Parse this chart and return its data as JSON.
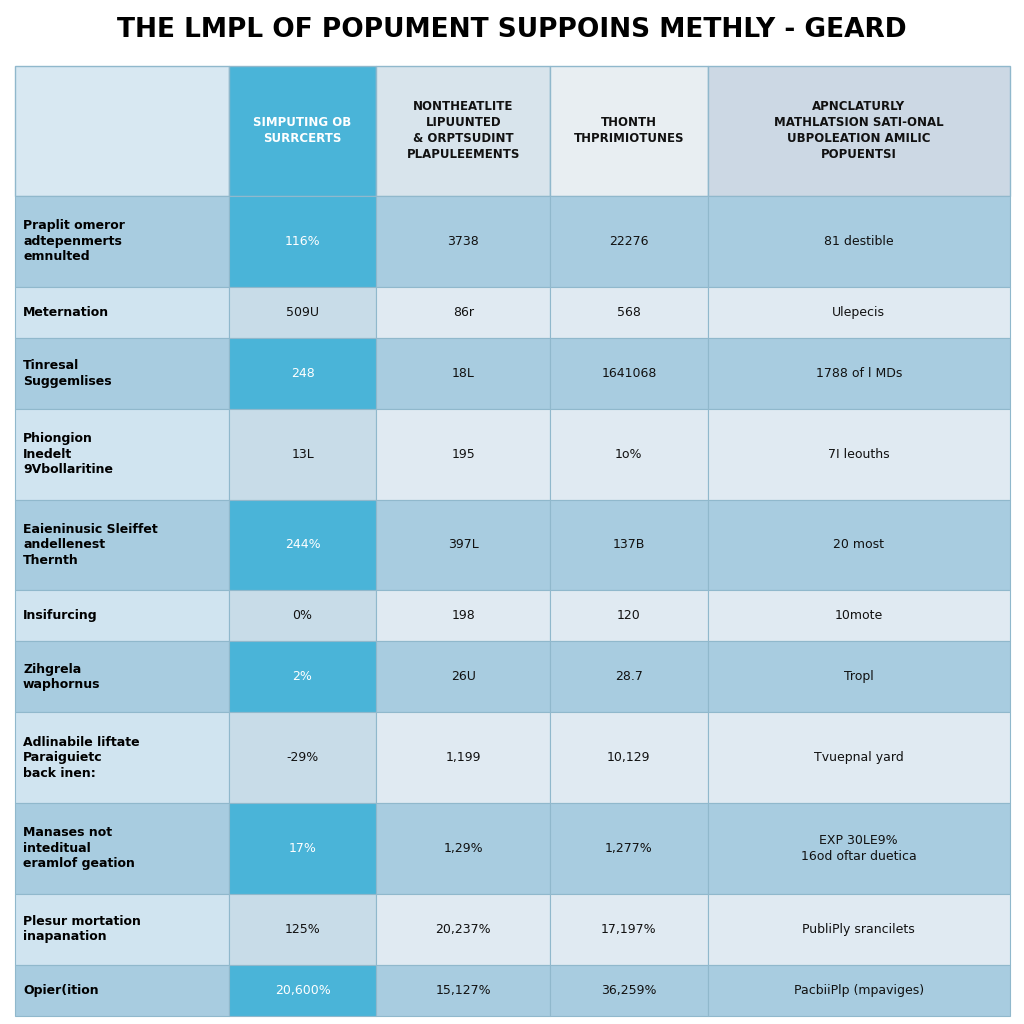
{
  "title": "THE LMPL OF POPUMENT SUPPOINS METHLY - GEARD",
  "col_headers": [
    "SIMPUTING OB\nSURRCERTS",
    "NONTHEATLITE\nLIPUUNTED\n& ORPTSUDINT\nPLAPULEEMENTS",
    "THONTH\nTHPRIMIOTUNES",
    "APNCLATURLY\nMATHLATSION SATI-ONAL\nUBPOLEATION AMILIC\nPOPUENTSI"
  ],
  "rows": [
    {
      "label": "Praplit omeror\nadtepenmerts\nemnulted",
      "values": [
        "116%",
        "3738",
        "22276",
        "81 destible"
      ],
      "highlight": true
    },
    {
      "label": "Meternation",
      "values": [
        "509U",
        "86r",
        "568",
        "Ulepecis"
      ],
      "highlight": false
    },
    {
      "label": "Tinresal\nSuggemlises",
      "values": [
        "248",
        "18L",
        "1641068",
        "1788 of l MDs"
      ],
      "highlight": true
    },
    {
      "label": "Phiongion\nInedelt\n9Vbollaritine",
      "values": [
        "13L",
        "195",
        "1o%",
        "7I leouths"
      ],
      "highlight": false
    },
    {
      "label": "Eaieninusic Sleiffet\nandellenest\nThernth",
      "values": [
        "244%",
        "397L",
        "137B",
        "20 most"
      ],
      "highlight": true
    },
    {
      "label": "Insifurcing",
      "values": [
        "0%",
        "198",
        "120",
        "10mote"
      ],
      "highlight": false
    },
    {
      "label": "Zihgrela\nwaphornus",
      "values": [
        "2%",
        "26U",
        "28.7",
        "Tropl"
      ],
      "highlight": true
    },
    {
      "label": "Adlinabile liftate\nParaiguietc\nback inen:",
      "values": [
        "-29%",
        "1,199",
        "10,129",
        "Tvuepnal yard"
      ],
      "highlight": false
    },
    {
      "label": "Manases not\ninteditual\neramlof geation",
      "values": [
        "17%",
        "1,29%",
        "1,277%",
        "EXP 30LE9%\n16od oftar duetica"
      ],
      "highlight": true
    },
    {
      "label": "Plesur mortation\ninapanation",
      "values": [
        "125%",
        "20,237%",
        "17,197%",
        "PubliPly srancilets"
      ],
      "highlight": false
    },
    {
      "label": "Opier(ition",
      "values": [
        "20,600%",
        "15,127%",
        "36,259%",
        "PacbiiPlp (mpaviges)"
      ],
      "highlight": true
    }
  ],
  "colors": {
    "bg": "#ffffff",
    "title_text": "#000000",
    "header_col1_bg": "#4ab4d8",
    "header_col1_text": "#ffffff",
    "header_col2_bg": "#d8e4ec",
    "header_col2_text": "#111111",
    "header_col3_bg": "#e8eef2",
    "header_col3_text": "#111111",
    "header_col4_bg": "#ccd8e4",
    "header_col4_text": "#111111",
    "label_highlight_bg": "#a8cce0",
    "label_normal_bg": "#d0e4f0",
    "label_text": "#000000",
    "cell_highlight_col1_bg": "#4ab4d8",
    "cell_highlight_col1_text": "#ffffff",
    "cell_highlight_other_bg": "#a8cce0",
    "cell_highlight_other_text": "#111111",
    "cell_normal_col1_bg": "#c8dce8",
    "cell_normal_col1_text": "#111111",
    "cell_normal_other_bg": "#e0eaf2",
    "cell_normal_other_text": "#111111",
    "grid_line": "#90b8cc"
  }
}
